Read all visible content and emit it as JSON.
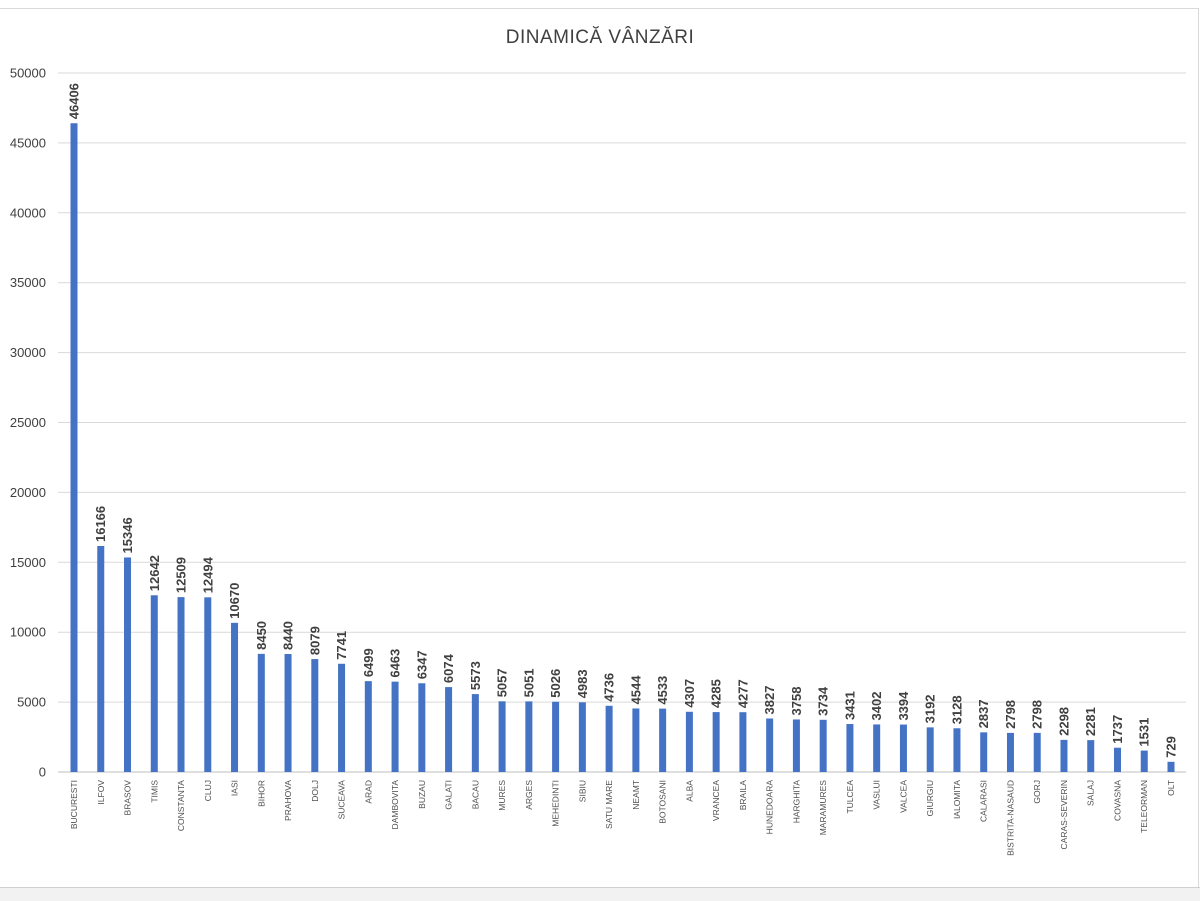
{
  "chart_data": {
    "type": "bar",
    "title": "DINAMICĂ VÂNZĂRI",
    "xlabel": "",
    "ylabel": "",
    "ylim": [
      0,
      50000
    ],
    "yticks": [
      0,
      5000,
      10000,
      15000,
      20000,
      25000,
      30000,
      35000,
      40000,
      45000,
      50000
    ],
    "grid": true,
    "legend": "none",
    "bar_color": "#4472c4",
    "categories": [
      "BUCURESTI",
      "ILFOV",
      "BRASOV",
      "TIMIS",
      "CONSTANTA",
      "CLUJ",
      "IASI",
      "BIHOR",
      "PRAHOVA",
      "DOLJ",
      "SUCEAVA",
      "ARAD",
      "DAMBOVITA",
      "BUZAU",
      "GALATI",
      "BACAU",
      "MURES",
      "ARGES",
      "MEHEDINTI",
      "SIBIU",
      "SATU MARE",
      "NEAMT",
      "BOTOSANI",
      "ALBA",
      "VRANCEA",
      "BRAILA",
      "HUNEDOARA",
      "HARGHITA",
      "MARAMURES",
      "TULCEA",
      "VASLUI",
      "VALCEA",
      "GIURGIU",
      "IALOMITA",
      "CALARASI",
      "BISTRITA-NASAUD",
      "GORJ",
      "CARAS-SEVERIN",
      "SALAJ",
      "COVASNA",
      "TELEORMAN",
      "OLT"
    ],
    "values": [
      46406,
      16166,
      15346,
      12642,
      12509,
      12494,
      10670,
      8450,
      8440,
      8079,
      7741,
      6499,
      6463,
      6347,
      6074,
      5573,
      5057,
      5051,
      5026,
      4983,
      4736,
      4544,
      4533,
      4307,
      4285,
      4277,
      3827,
      3758,
      3734,
      3431,
      3402,
      3394,
      3192,
      3128,
      2837,
      2798,
      2798,
      2298,
      2281,
      1737,
      1531,
      729
    ]
  }
}
